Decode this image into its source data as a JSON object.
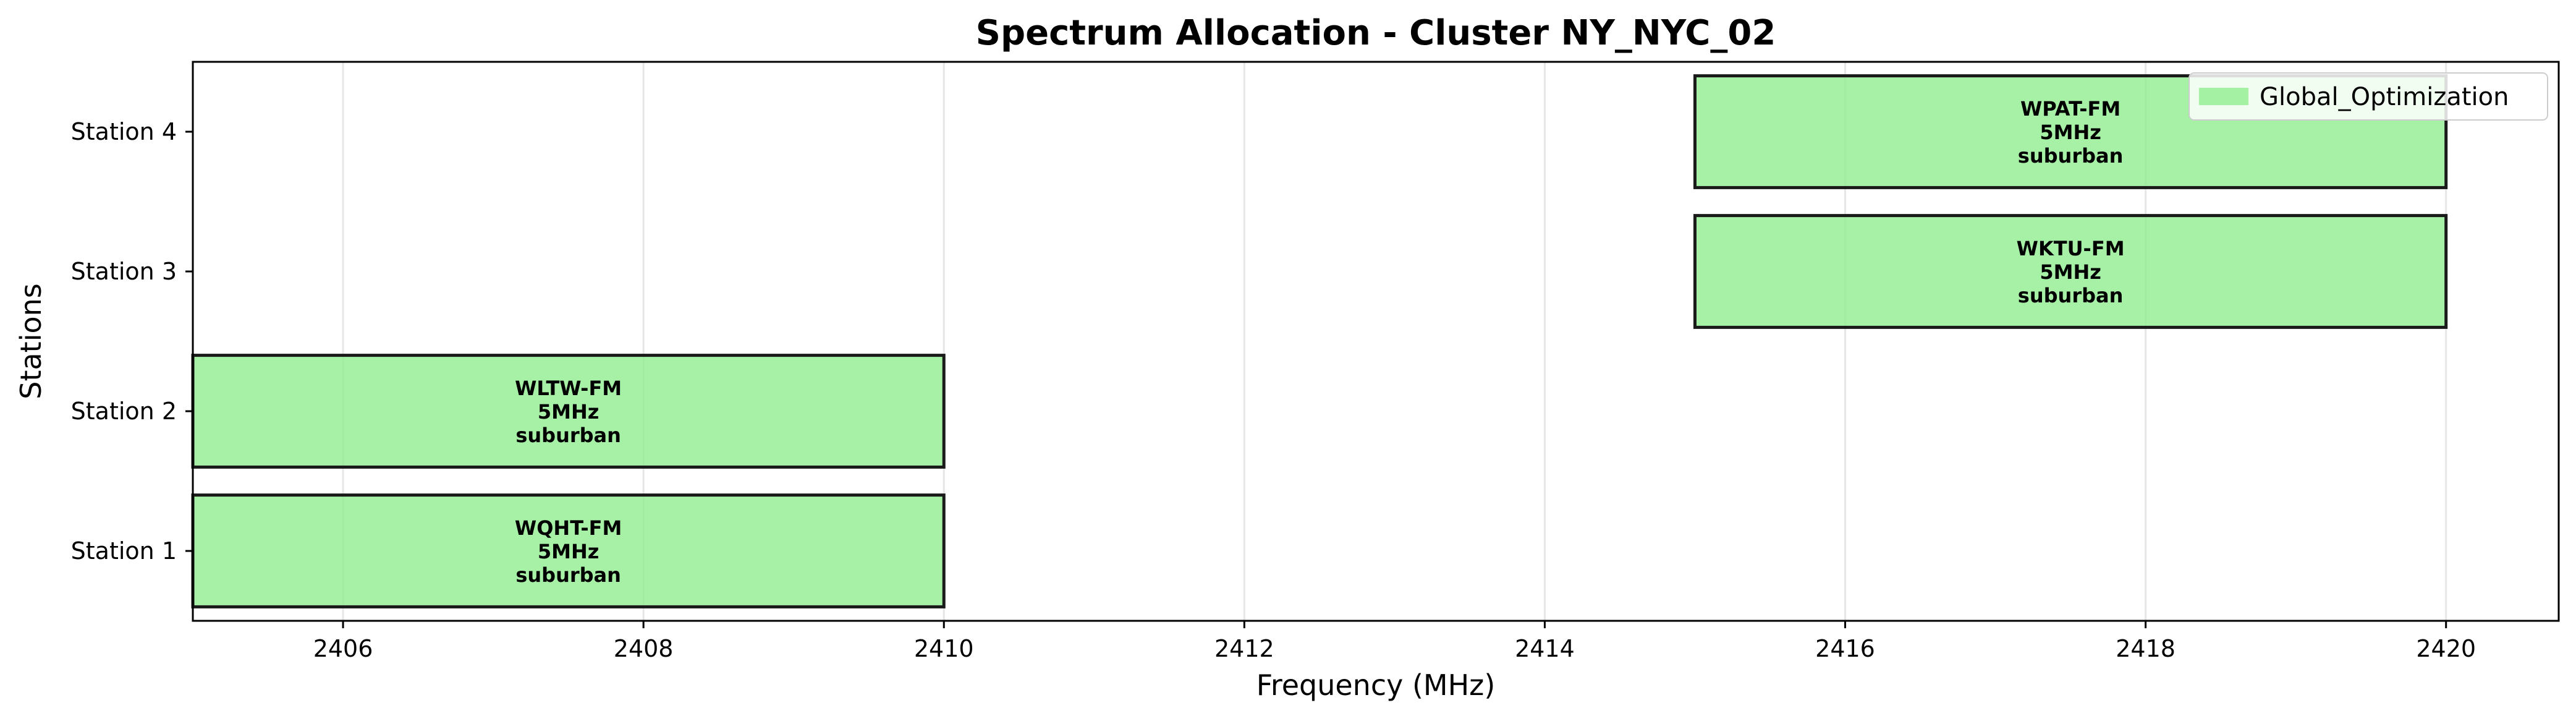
{
  "chart_data": {
    "type": "bar",
    "orientation": "horizontal-range",
    "title": "Spectrum Allocation - Cluster NY_NYC_02",
    "xlabel": "Frequency (MHz)",
    "ylabel": "Stations",
    "xlim": [
      2405,
      2420.75
    ],
    "xticks": [
      2406,
      2408,
      2410,
      2412,
      2414,
      2416,
      2418,
      2420
    ],
    "categories": [
      "Station 1",
      "Station 2",
      "Station 3",
      "Station 4"
    ],
    "grid": "x",
    "legend": {
      "position": "top-right",
      "entries": [
        {
          "label": "Global_Optimization",
          "color": "#90ee90"
        }
      ]
    },
    "bar_color": "#90ee90",
    "bar_edge_color": "#1a1a1a",
    "series": [
      {
        "name": "Global_Optimization",
        "bars": [
          {
            "station": "Station 1",
            "start": 2405,
            "end": 2410,
            "label": [
              "WQHT-FM",
              "5MHz",
              "suburban"
            ]
          },
          {
            "station": "Station 2",
            "start": 2405,
            "end": 2410,
            "label": [
              "WLTW-FM",
              "5MHz",
              "suburban"
            ]
          },
          {
            "station": "Station 3",
            "start": 2415,
            "end": 2420,
            "label": [
              "WKTU-FM",
              "5MHz",
              "suburban"
            ]
          },
          {
            "station": "Station 4",
            "start": 2415,
            "end": 2420,
            "label": [
              "WPAT-FM",
              "5MHz",
              "suburban"
            ]
          }
        ]
      }
    ]
  }
}
